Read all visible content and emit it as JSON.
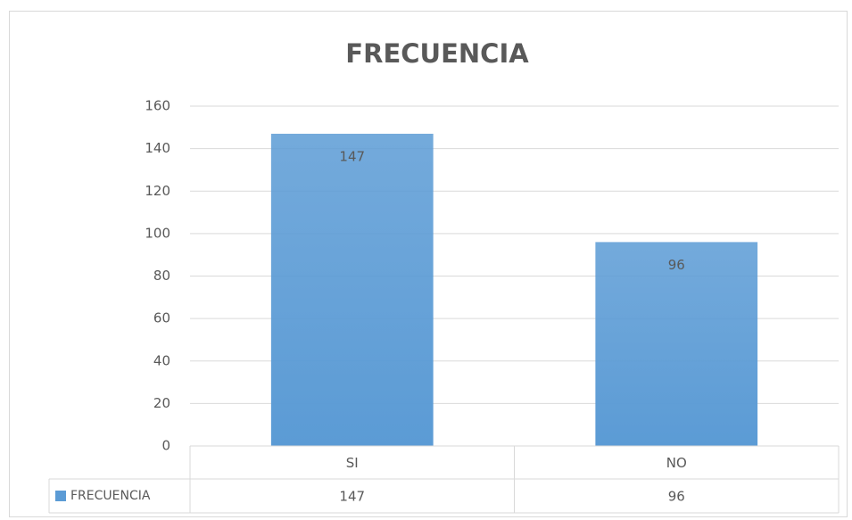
{
  "chart_data": {
    "type": "bar",
    "title": "FRECUENCIA",
    "categories": [
      "SI",
      "NO"
    ],
    "series": [
      {
        "name": "FRECUENCIA",
        "color": "#5b9bd5",
        "values": [
          147,
          96
        ]
      }
    ],
    "ylim": [
      0,
      160
    ],
    "yticks": [
      0,
      20,
      40,
      60,
      80,
      100,
      120,
      140,
      160
    ],
    "grid": true,
    "data_table": true
  }
}
